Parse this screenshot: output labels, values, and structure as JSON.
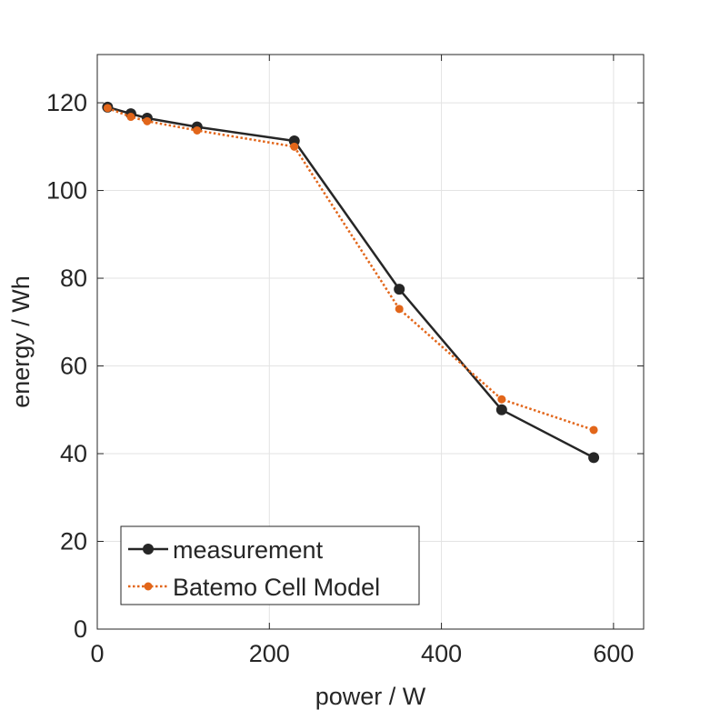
{
  "chart_data": {
    "type": "line",
    "title": "",
    "xlabel": "power / W",
    "ylabel": "energy / Wh",
    "xlim": [
      0,
      635
    ],
    "ylim": [
      0,
      131
    ],
    "x_ticks": [
      0,
      200,
      400,
      600
    ],
    "y_ticks": [
      0,
      20,
      40,
      60,
      80,
      100,
      120
    ],
    "grid": true,
    "legend_position": "bottom-left",
    "series": [
      {
        "name": "measurement",
        "color": "#262626",
        "line_style": "solid",
        "marker": "filled-circle",
        "x": [
          12,
          39,
          58,
          116,
          229,
          351,
          470,
          577
        ],
        "y": [
          119.0,
          117.5,
          116.5,
          114.5,
          111.3,
          77.5,
          50.0,
          39.1
        ]
      },
      {
        "name": "Batemo Cell Model",
        "color": "#E2661A",
        "line_style": "dotted",
        "marker": "filled-circle",
        "x": [
          12,
          39,
          58,
          116,
          229,
          351,
          470,
          577
        ],
        "y": [
          118.8,
          116.8,
          115.8,
          113.7,
          110.0,
          73.0,
          52.4,
          45.4
        ]
      }
    ]
  }
}
